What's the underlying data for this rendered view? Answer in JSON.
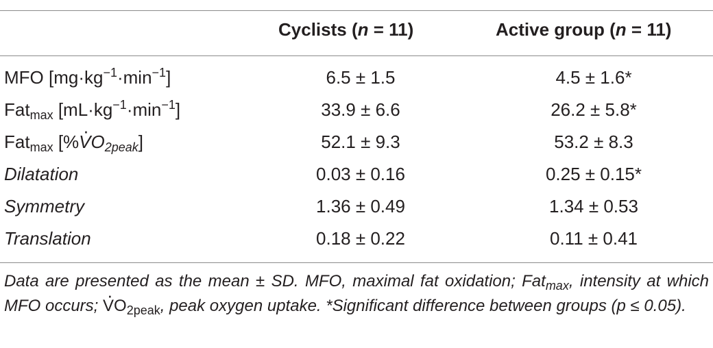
{
  "table": {
    "header": {
      "col1_prefix": "Cyclists (",
      "col1_n": "n",
      "col1_suffix": " = 11)",
      "col2_prefix": "Active group (",
      "col2_n": "n",
      "col2_suffix": " = 11)"
    },
    "rows": [
      {
        "label_parts": {
          "a": "MFO [mg·kg",
          "b": "−1",
          "c": "·min",
          "d": "−1",
          "e": "]"
        },
        "cyclists": "6.5 ± 1.5",
        "active": "4.5 ± 1.6*"
      },
      {
        "label_parts": {
          "a": "Fat",
          "sub": "max",
          "b": " [mL·kg",
          "c": "−1",
          "d": "·min",
          "e": "−1",
          "f": "]"
        },
        "cyclists": "33.9 ± 6.6",
        "active": "26.2 ± 5.8*"
      },
      {
        "label_parts": {
          "a": "Fat",
          "sub": "max",
          "b": " [%",
          "v": "V",
          "c": "O",
          "sub2": "2peak",
          "d": "]"
        },
        "cyclists": "52.1 ± 9.3",
        "active": "53.2 ± 8.3"
      },
      {
        "label": "Dilatation",
        "cyclists": "0.03 ± 0.16",
        "active": "0.25 ± 0.15*"
      },
      {
        "label": "Symmetry",
        "cyclists": "1.36 ± 0.49",
        "active": "1.34 ± 0.53"
      },
      {
        "label": "Translation",
        "cyclists": "0.18 ± 0.22",
        "active": "0.11 ± 0.41"
      }
    ],
    "footnote": {
      "p1": "Data are presented as the mean ± SD. MFO, maximal fat oxidation; Fat",
      "p1_sub": "max",
      "p2": ", intensity at which MFO occurs; ",
      "vo": "V",
      "vo_o": "O",
      "vo_sub": "2peak",
      "p3": ", peak oxygen uptake. *Significant difference between groups (p ≤ 0.05)."
    }
  }
}
